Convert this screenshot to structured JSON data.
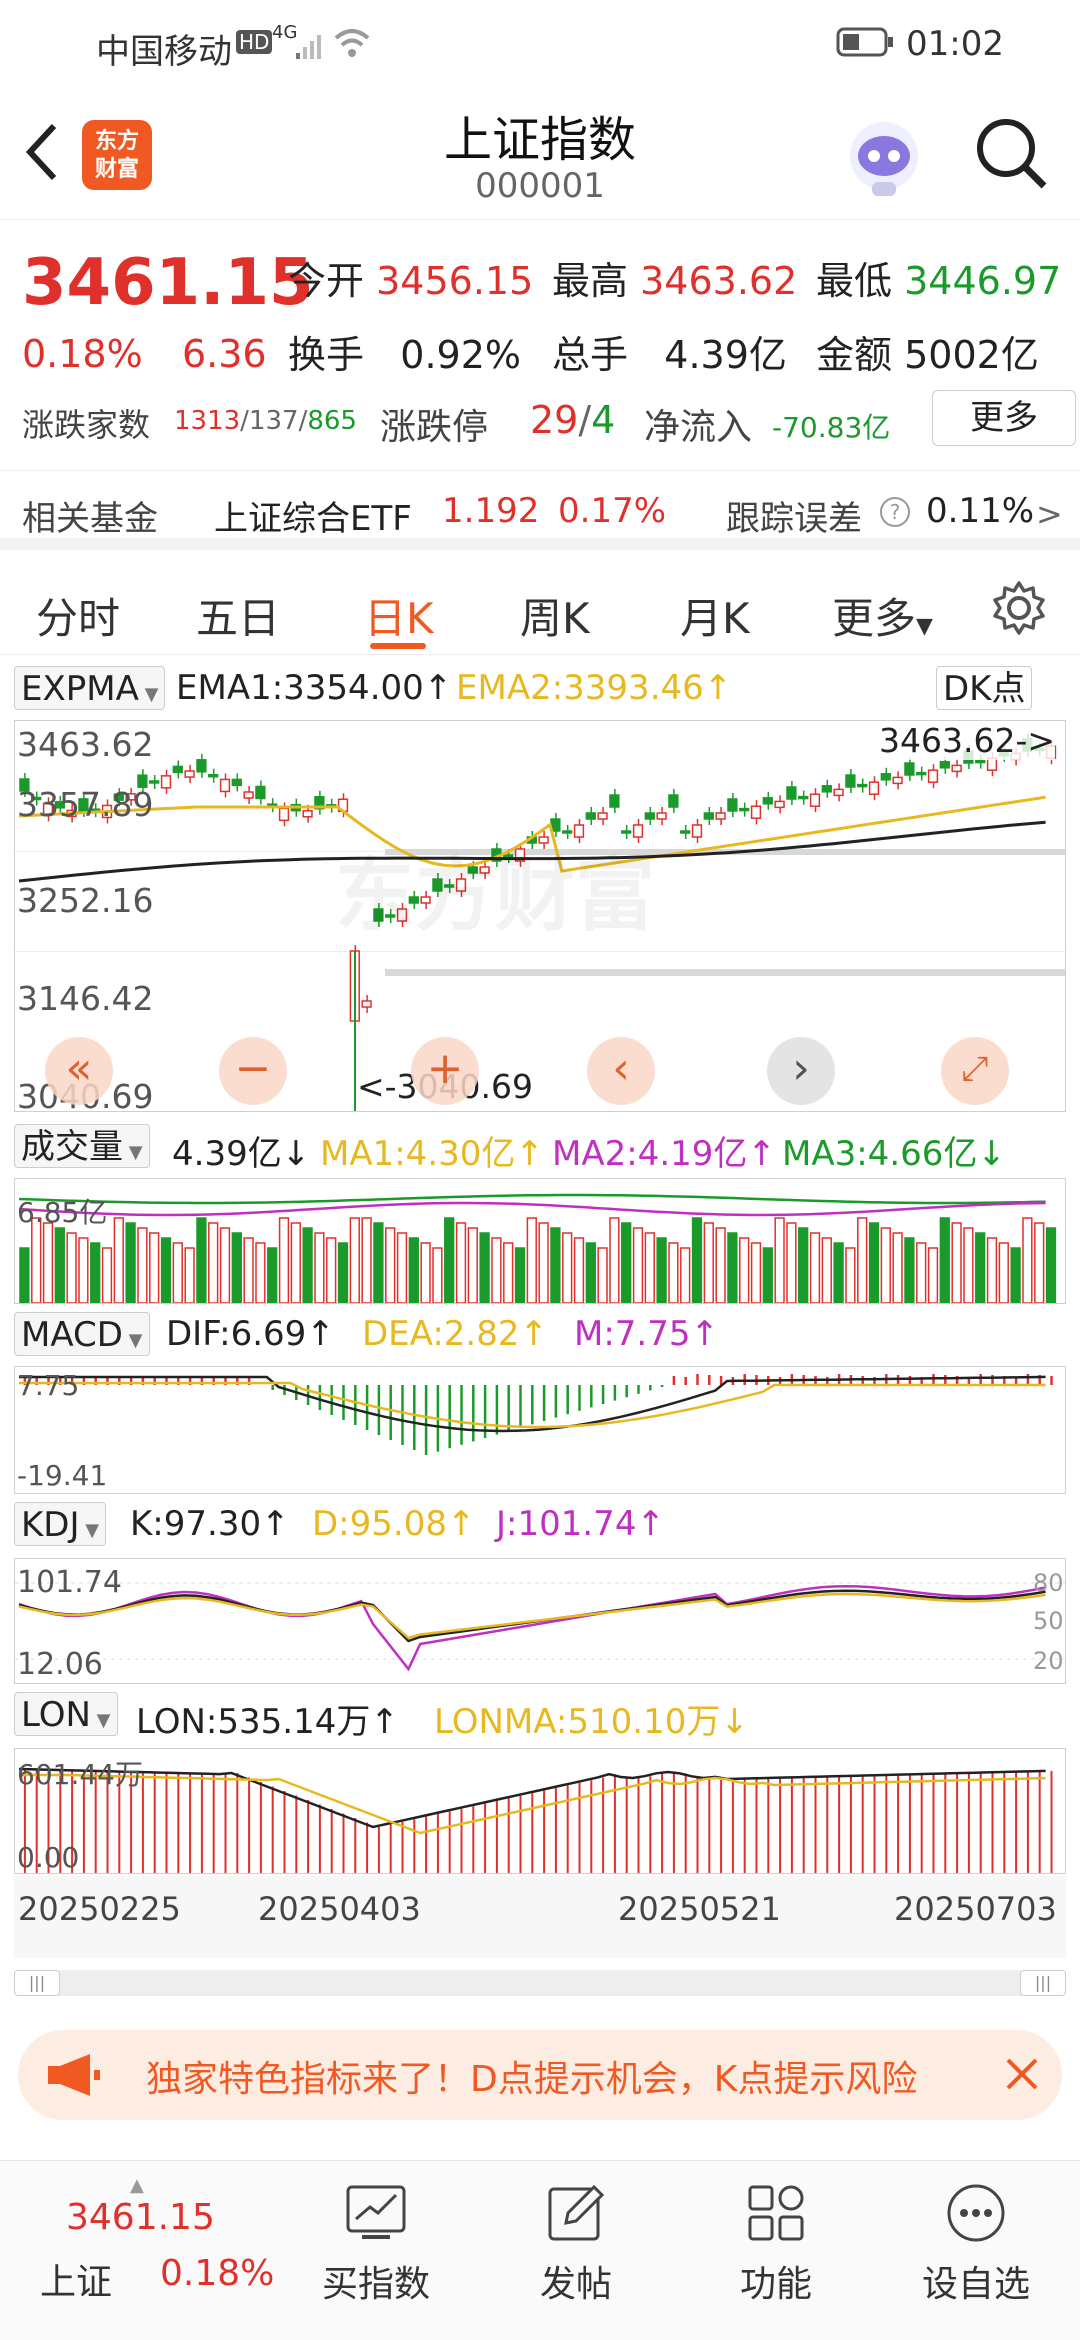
{
  "status": {
    "carrier": "中国移动",
    "hd": "HD",
    "net": "4G",
    "time": "01:02"
  },
  "header": {
    "title": "上证指数",
    "code": "000001",
    "logo_line1": "东方",
    "logo_line2": "财富"
  },
  "quote": {
    "price": "3461.15",
    "pct": "0.18%",
    "chg": "6.36",
    "open_label": "今开",
    "open": "3456.15",
    "high_label": "最高",
    "high": "3463.62",
    "low_label": "最低",
    "low": "3446.97",
    "turnover_label": "换手",
    "turnover": "0.92%",
    "vol_label": "总手",
    "vol": "4.39亿",
    "amt_label": "金额",
    "amt": "5002亿",
    "breadth_label": "涨跌家数",
    "up": "1313",
    "flat": "137",
    "down": "865",
    "limit_label": "涨跌停",
    "limit_up": "29",
    "limit_down": "4",
    "flow_label": "净流入",
    "flow": "-70.83亿",
    "more": "更多"
  },
  "fund": {
    "label": "相关基金",
    "name": "上证综合ETF",
    "price": "1.192",
    "pct": "0.17%",
    "err_label": "跟踪误差",
    "err": "0.11%"
  },
  "tabs": [
    "分时",
    "五日",
    "日K",
    "周K",
    "月K",
    "更多"
  ],
  "active_tab": "日K",
  "expma": {
    "name": "EXPMA",
    "ema1": "EMA1:3354.00",
    "ema2": "EMA2:3393.46",
    "dk": "DK点",
    "y1": "3463.62",
    "y2": "3357.89",
    "y3": "3252.16",
    "y4": "3146.42",
    "y5": "3040.69",
    "hi": "3463.62",
    "lo": "<-3040.69",
    "watermark": "东方财富"
  },
  "volume": {
    "name": "成交量",
    "val": "4.39亿",
    "ma1": "MA1:4.30亿",
    "ma2": "MA2:4.19亿",
    "ma3": "MA3:4.66亿",
    "y": "6.85亿"
  },
  "macd": {
    "name": "MACD",
    "dif": "DIF:6.69",
    "dea": "DEA:2.82",
    "m": "M:7.75",
    "y1": "7.75",
    "y2": "-19.41"
  },
  "kdj": {
    "name": "KDJ",
    "k": "K:97.30",
    "d": "D:95.08",
    "j": "J:101.74",
    "y1": "101.74",
    "y2": "12.06",
    "r80": "80",
    "r50": "50",
    "r20": "20"
  },
  "lon": {
    "name": "LON",
    "lon": "LON:535.14万",
    "lonma": "LONMA:510.10万",
    "y1": "601.44万",
    "y2": "0.00"
  },
  "dates": [
    "20250225",
    "20250403",
    "20250521",
    "20250703"
  ],
  "banner": {
    "text": "独家特色指标来了！D点提示机会，K点提示风险"
  },
  "bottom": {
    "index_price": "3461.15",
    "index_name": "上证",
    "index_pct": "0.18%",
    "items": [
      "买指数",
      "发帖",
      "功能",
      "设自选"
    ]
  },
  "colors": {
    "up": "#e0302c",
    "down": "#1a9a2a",
    "ema2": "#e8b820",
    "brand": "#f05a22"
  }
}
